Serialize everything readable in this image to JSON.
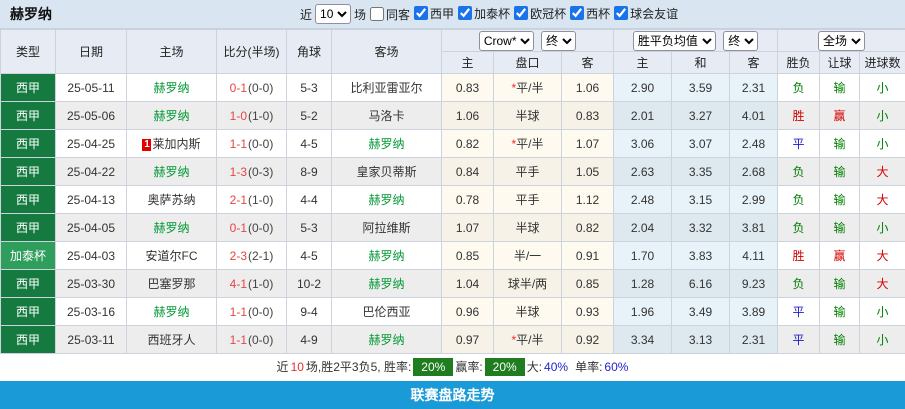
{
  "header": {
    "title": "赫罗纳",
    "recent_prefix": "近",
    "recent_value": "10",
    "recent_suffix": "场",
    "same_venue_label": "同客",
    "leagues": [
      "西甲",
      "加泰杯",
      "欧冠杯",
      "西杯",
      "球会友谊"
    ]
  },
  "table": {
    "columns": [
      "类型",
      "日期",
      "主场",
      "比分(半场)",
      "角球",
      "客场"
    ],
    "odds_group": {
      "provider": "Crow*",
      "time": "终",
      "sub": [
        "主",
        "盘口",
        "客"
      ]
    },
    "avg_group": {
      "metric": "胜平负均值",
      "time": "终",
      "sub": [
        "主",
        "和",
        "客"
      ]
    },
    "result_group": {
      "scope": "全场",
      "sub": [
        "胜负",
        "让球",
        "进球数"
      ]
    },
    "handicap_star_char": "*",
    "value_colors": {
      "胜": "win",
      "赢": "win",
      "大": "win",
      "平": "draw",
      "负": "lose",
      "输": "lose",
      "小": "lose"
    },
    "rows": [
      {
        "league": "西甲",
        "league_class": "liga",
        "date": "25-05-11",
        "home": "赫罗纳",
        "home_team": true,
        "home_badge": "",
        "score": "0-1",
        "half": "(0-0)",
        "corners": "5-3",
        "away": "比利亚雷亚尔",
        "away_team": false,
        "away_badge": "",
        "odds_home": "0.83",
        "handicap_star": true,
        "handicap": "平/半",
        "odds_away": "1.06",
        "avg_home": "2.90",
        "avg_draw": "3.59",
        "avg_away": "2.31",
        "result": "负",
        "spread": "输",
        "goals": "小"
      },
      {
        "league": "西甲",
        "league_class": "liga",
        "date": "25-05-06",
        "home": "赫罗纳",
        "home_team": true,
        "home_badge": "",
        "score": "1-0",
        "half": "(1-0)",
        "corners": "5-2",
        "away": "马洛卡",
        "away_team": false,
        "away_badge": "",
        "odds_home": "1.06",
        "handicap_star": false,
        "handicap": "半球",
        "odds_away": "0.83",
        "avg_home": "2.01",
        "avg_draw": "3.27",
        "avg_away": "4.01",
        "result": "胜",
        "spread": "赢",
        "goals": "小"
      },
      {
        "league": "西甲",
        "league_class": "liga",
        "date": "25-04-25",
        "home": "莱加内斯",
        "home_team": false,
        "home_badge": "1",
        "score": "1-1",
        "half": "(0-0)",
        "corners": "4-5",
        "away": "赫罗纳",
        "away_team": true,
        "away_badge": "",
        "odds_home": "0.82",
        "handicap_star": true,
        "handicap": "平/半",
        "odds_away": "1.07",
        "avg_home": "3.06",
        "avg_draw": "3.07",
        "avg_away": "2.48",
        "result": "平",
        "spread": "输",
        "goals": "小"
      },
      {
        "league": "西甲",
        "league_class": "liga",
        "date": "25-04-22",
        "home": "赫罗纳",
        "home_team": true,
        "home_badge": "",
        "score": "1-3",
        "half": "(0-3)",
        "corners": "8-9",
        "away": "皇家贝蒂斯",
        "away_team": false,
        "away_badge": "",
        "odds_home": "0.84",
        "handicap_star": false,
        "handicap": "平手",
        "odds_away": "1.05",
        "avg_home": "2.63",
        "avg_draw": "3.35",
        "avg_away": "2.68",
        "result": "负",
        "spread": "输",
        "goals": "大"
      },
      {
        "league": "西甲",
        "league_class": "liga",
        "date": "25-04-13",
        "home": "奥萨苏纳",
        "home_team": false,
        "home_badge": "",
        "score": "2-1",
        "half": "(1-0)",
        "corners": "4-4",
        "away": "赫罗纳",
        "away_team": true,
        "away_badge": "",
        "odds_home": "0.78",
        "handicap_star": false,
        "handicap": "平手",
        "odds_away": "1.12",
        "avg_home": "2.48",
        "avg_draw": "3.15",
        "avg_away": "2.99",
        "result": "负",
        "spread": "输",
        "goals": "大"
      },
      {
        "league": "西甲",
        "league_class": "liga",
        "date": "25-04-05",
        "home": "赫罗纳",
        "home_team": true,
        "home_badge": "",
        "score": "0-1",
        "half": "(0-0)",
        "corners": "5-3",
        "away": "阿拉维斯",
        "away_team": false,
        "away_badge": "",
        "odds_home": "1.07",
        "handicap_star": false,
        "handicap": "半球",
        "odds_away": "0.82",
        "avg_home": "2.04",
        "avg_draw": "3.32",
        "avg_away": "3.81",
        "result": "负",
        "spread": "输",
        "goals": "小"
      },
      {
        "league": "加泰杯",
        "league_class": "cup",
        "date": "25-04-03",
        "home": "安道尔FC",
        "home_team": false,
        "home_badge": "",
        "score": "2-3",
        "half": "(2-1)",
        "corners": "4-5",
        "away": "赫罗纳",
        "away_team": true,
        "away_badge": "",
        "odds_home": "0.85",
        "handicap_star": false,
        "handicap": "半/一",
        "odds_away": "0.91",
        "avg_home": "1.70",
        "avg_draw": "3.83",
        "avg_away": "4.11",
        "result": "胜",
        "spread": "赢",
        "goals": "大"
      },
      {
        "league": "西甲",
        "league_class": "liga",
        "date": "25-03-30",
        "home": "巴塞罗那",
        "home_team": false,
        "home_badge": "",
        "score": "4-1",
        "half": "(1-0)",
        "corners": "10-2",
        "away": "赫罗纳",
        "away_team": true,
        "away_badge": "",
        "odds_home": "1.04",
        "handicap_star": false,
        "handicap": "球半/两",
        "odds_away": "0.85",
        "avg_home": "1.28",
        "avg_draw": "6.16",
        "avg_away": "9.23",
        "result": "负",
        "spread": "输",
        "goals": "大"
      },
      {
        "league": "西甲",
        "league_class": "liga",
        "date": "25-03-16",
        "home": "赫罗纳",
        "home_team": true,
        "home_badge": "",
        "score": "1-1",
        "half": "(0-0)",
        "corners": "9-4",
        "away": "巴伦西亚",
        "away_team": false,
        "away_badge": "",
        "odds_home": "0.96",
        "handicap_star": false,
        "handicap": "半球",
        "odds_away": "0.93",
        "avg_home": "1.96",
        "avg_draw": "3.49",
        "avg_away": "3.89",
        "result": "平",
        "spread": "输",
        "goals": "小"
      },
      {
        "league": "西甲",
        "league_class": "liga",
        "date": "25-03-11",
        "home": "西班牙人",
        "home_team": false,
        "home_badge": "",
        "score": "1-1",
        "half": "(0-0)",
        "corners": "4-9",
        "away": "赫罗纳",
        "away_team": true,
        "away_badge": "",
        "odds_home": "0.97",
        "handicap_star": true,
        "handicap": "平/半",
        "odds_away": "0.92",
        "avg_home": "3.34",
        "avg_draw": "3.13",
        "avg_away": "2.31",
        "result": "平",
        "spread": "输",
        "goals": "小"
      }
    ]
  },
  "summary": {
    "recent_prefix": "近",
    "recent_count": "10",
    "record_text": "场,胜2平3负5, 胜率:",
    "win_rate": "20%",
    "profit_label": "赢率:",
    "profit_rate": "20%",
    "big_label": "大:",
    "big_rate": "40%",
    "single_label": "单率:",
    "single_rate": "60%"
  },
  "footer": {
    "link_label": "联赛盘路走势"
  },
  "colors": {
    "accent_blue": "#1a9bd7",
    "team_green": "#009933",
    "score_red": "#e64545",
    "win_red": "#d40000",
    "draw_blue": "#1a1acc",
    "lose_green": "#008000",
    "league_liga_bg": "#157a40",
    "league_cup_bg": "#2f9e5c",
    "rate_badge_bg": "#1f7d1f",
    "rate_value_blue": "#2323cc",
    "topbar_bg": "#d9e6f2",
    "header_bg": "#e7ecf4"
  }
}
